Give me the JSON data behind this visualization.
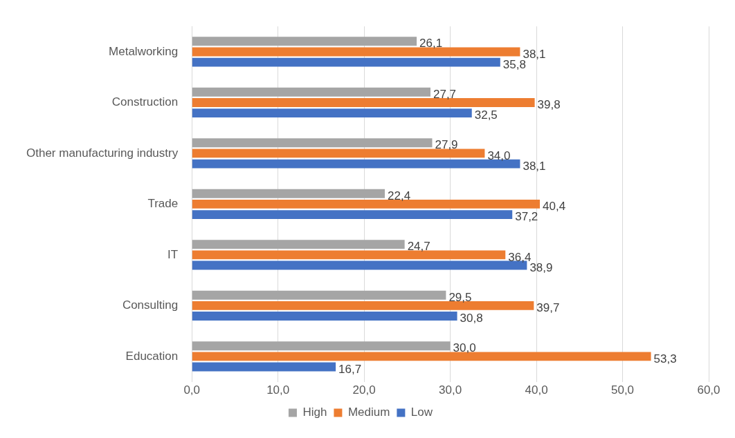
{
  "chart_data": {
    "type": "bar",
    "orientation": "horizontal",
    "categories": [
      "Metalworking",
      "Construction",
      "Other manufacturing industry",
      "Trade",
      "IT",
      "Consulting",
      "Education"
    ],
    "series": [
      {
        "name": "High",
        "color": "#a5a5a5",
        "values": [
          26.1,
          27.7,
          27.9,
          22.4,
          24.7,
          29.5,
          30.0
        ],
        "value_labels": [
          "26,1",
          "27,7",
          "27,9",
          "22,4",
          "24,7",
          "29,5",
          "30,0"
        ]
      },
      {
        "name": "Medium",
        "color": "#ed7d31",
        "values": [
          38.1,
          39.8,
          34.0,
          40.4,
          36.4,
          39.7,
          53.3
        ],
        "value_labels": [
          "38,1",
          "39,8",
          "34,0",
          "40,4",
          "36,4",
          "39,7",
          "53,3"
        ]
      },
      {
        "name": "Low",
        "color": "#4472c4",
        "values": [
          35.8,
          32.5,
          38.1,
          37.2,
          38.9,
          30.8,
          16.7
        ],
        "value_labels": [
          "35,8",
          "32,5",
          "38,1",
          "37,2",
          "38,9",
          "30,8",
          "16,7"
        ]
      }
    ],
    "xlim": [
      0,
      60
    ],
    "xticks": [
      {
        "value": 0,
        "label": "0,0"
      },
      {
        "value": 10,
        "label": "10,0"
      },
      {
        "value": 20,
        "label": "20,0"
      },
      {
        "value": 30,
        "label": "30,0"
      },
      {
        "value": 40,
        "label": "40,0"
      },
      {
        "value": 50,
        "label": "50,0"
      },
      {
        "value": 60,
        "label": "60,0"
      }
    ],
    "grid": "x",
    "legend": "bottom"
  }
}
